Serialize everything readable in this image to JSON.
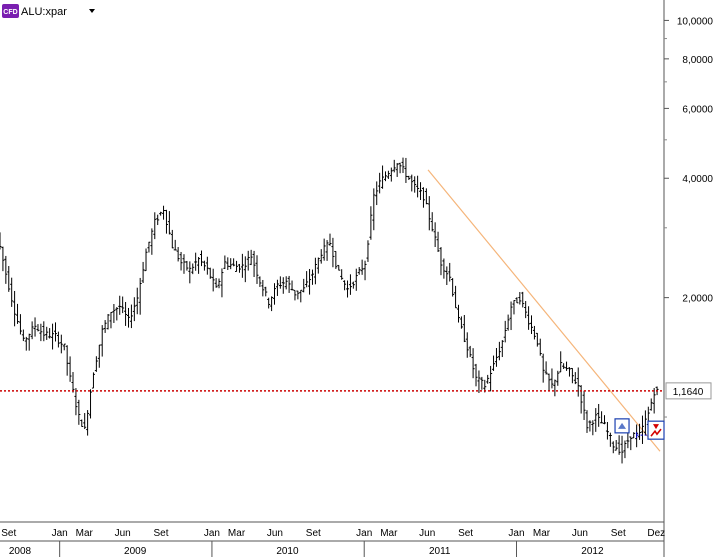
{
  "symbol": {
    "badge": "CFD",
    "name": "ALU:xpar",
    "dropdown_icon": "caret-down-icon"
  },
  "chart_data": {
    "type": "ohlc",
    "title": "",
    "xlabel": "",
    "ylabel": "",
    "y_scale": "log",
    "ylim": [
      0.55,
      11.0
    ],
    "y_ticks": [
      {
        "value": 10.0,
        "label": "10,0000"
      },
      {
        "value": 8.0,
        "label": "8,0000"
      },
      {
        "value": 6.0,
        "label": "6,0000"
      },
      {
        "value": 4.0,
        "label": "4,0000"
      },
      {
        "value": 2.0,
        "label": "2,0000"
      }
    ],
    "x_range": [
      "2008-08-11",
      "2012-12-10"
    ],
    "month_ticks": [
      {
        "date": "2008-09-01",
        "label": "Set"
      },
      {
        "date": "2009-01-01",
        "label": "Jan"
      },
      {
        "date": "2009-03-01",
        "label": "Mar"
      },
      {
        "date": "2009-06-01",
        "label": "Jun"
      },
      {
        "date": "2009-09-01",
        "label": "Set"
      },
      {
        "date": "2010-01-01",
        "label": "Jan"
      },
      {
        "date": "2010-03-01",
        "label": "Mar"
      },
      {
        "date": "2010-06-01",
        "label": "Jun"
      },
      {
        "date": "2010-09-01",
        "label": "Set"
      },
      {
        "date": "2011-01-01",
        "label": "Jan"
      },
      {
        "date": "2011-03-01",
        "label": "Mar"
      },
      {
        "date": "2011-06-01",
        "label": "Jun"
      },
      {
        "date": "2011-09-01",
        "label": "Set"
      },
      {
        "date": "2012-01-01",
        "label": "Jan"
      },
      {
        "date": "2012-03-01",
        "label": "Mar"
      },
      {
        "date": "2012-06-01",
        "label": "Jun"
      },
      {
        "date": "2012-09-01",
        "label": "Set"
      },
      {
        "date": "2012-12-01",
        "label": "Dez"
      }
    ],
    "year_ticks": [
      {
        "date": "2008-07-01",
        "label": "2008"
      },
      {
        "date": "2009-07-01",
        "label": "2009"
      },
      {
        "date": "2010-07-01",
        "label": "2010"
      },
      {
        "date": "2011-07-01",
        "label": "2011"
      },
      {
        "date": "2012-07-01",
        "label": "2012"
      }
    ],
    "year_boundaries": [
      "2009-01-01",
      "2010-01-01",
      "2011-01-01",
      "2012-01-01"
    ],
    "price_points": [
      [
        "2008-08-11",
        2.9
      ],
      [
        "2008-09-01",
        2.3
      ],
      [
        "2008-09-22",
        1.85
      ],
      [
        "2008-10-13",
        1.55
      ],
      [
        "2008-11-10",
        1.7
      ],
      [
        "2008-12-01",
        1.62
      ],
      [
        "2008-12-29",
        1.6
      ],
      [
        "2009-01-19",
        1.5
      ],
      [
        "2009-02-02",
        1.25
      ],
      [
        "2009-02-23",
        1.0
      ],
      [
        "2009-03-09",
        0.93
      ],
      [
        "2009-03-30",
        1.3
      ],
      [
        "2009-04-20",
        1.65
      ],
      [
        "2009-05-11",
        1.85
      ],
      [
        "2009-06-01",
        1.9
      ],
      [
        "2009-06-22",
        1.75
      ],
      [
        "2009-07-13",
        2.0
      ],
      [
        "2009-08-03",
        2.6
      ],
      [
        "2009-08-24",
        3.1
      ],
      [
        "2009-09-14",
        3.35
      ],
      [
        "2009-10-05",
        2.7
      ],
      [
        "2009-10-26",
        2.45
      ],
      [
        "2009-11-16",
        2.35
      ],
      [
        "2009-12-07",
        2.5
      ],
      [
        "2009-12-28",
        2.35
      ],
      [
        "2010-01-18",
        2.1
      ],
      [
        "2010-02-08",
        2.45
      ],
      [
        "2010-03-01",
        2.4
      ],
      [
        "2010-03-22",
        2.4
      ],
      [
        "2010-04-12",
        2.55
      ],
      [
        "2010-05-03",
        2.2
      ],
      [
        "2010-05-24",
        1.95
      ],
      [
        "2010-06-14",
        2.15
      ],
      [
        "2010-07-05",
        2.2
      ],
      [
        "2010-07-26",
        2.05
      ],
      [
        "2010-08-16",
        2.1
      ],
      [
        "2010-09-06",
        2.3
      ],
      [
        "2010-09-27",
        2.6
      ],
      [
        "2010-10-18",
        2.75
      ],
      [
        "2010-11-08",
        2.3
      ],
      [
        "2010-11-29",
        2.1
      ],
      [
        "2010-12-20",
        2.25
      ],
      [
        "2011-01-10",
        2.45
      ],
      [
        "2011-01-31",
        3.6
      ],
      [
        "2011-02-14",
        3.9
      ],
      [
        "2011-03-07",
        4.15
      ],
      [
        "2011-03-28",
        4.4
      ],
      [
        "2011-04-18",
        4.1
      ],
      [
        "2011-05-09",
        3.8
      ],
      [
        "2011-05-30",
        3.6
      ],
      [
        "2011-06-20",
        3.0
      ],
      [
        "2011-07-11",
        2.45
      ],
      [
        "2011-08-01",
        2.25
      ],
      [
        "2011-08-22",
        1.75
      ],
      [
        "2011-09-12",
        1.5
      ],
      [
        "2011-10-03",
        1.25
      ],
      [
        "2011-10-24",
        1.2
      ],
      [
        "2011-11-14",
        1.35
      ],
      [
        "2011-12-05",
        1.55
      ],
      [
        "2011-12-26",
        1.9
      ],
      [
        "2012-01-16",
        2.0
      ],
      [
        "2012-02-06",
        1.75
      ],
      [
        "2012-02-27",
        1.55
      ],
      [
        "2012-03-12",
        1.3
      ],
      [
        "2012-04-02",
        1.2
      ],
      [
        "2012-04-23",
        1.35
      ],
      [
        "2012-05-14",
        1.3
      ],
      [
        "2012-06-04",
        1.2
      ],
      [
        "2012-06-25",
        0.95
      ],
      [
        "2012-07-16",
        1.0
      ],
      [
        "2012-08-06",
        0.95
      ],
      [
        "2012-08-27",
        0.85
      ],
      [
        "2012-09-17",
        0.82
      ],
      [
        "2012-10-08",
        0.9
      ],
      [
        "2012-10-29",
        0.9
      ],
      [
        "2012-11-19",
        1.02
      ],
      [
        "2012-12-03",
        1.16
      ]
    ],
    "current_price": {
      "value": 1.164,
      "label": "1,1640"
    },
    "trendline": {
      "start": [
        "2011-06-03",
        4.2
      ],
      "end": [
        "2012-12-10",
        0.82
      ]
    },
    "order_level": 0.9,
    "colors": {
      "bars": "#000000",
      "price_line": "#cc0000",
      "trendline": "#f5b57a",
      "order_line": "#0000cc",
      "axis": "#555555",
      "badge": "#7a1fb0"
    }
  }
}
